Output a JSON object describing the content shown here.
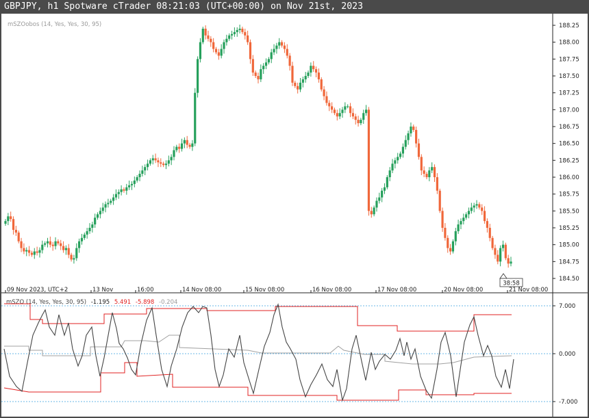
{
  "window": {
    "title": "GBPJPY, h1 Spotware cTrader 08:21:03 (UTC+00:00) on Nov 21st, 2023"
  },
  "main_chart": {
    "indicator_label": "mSZOobos (14, Yes, Yes, 30, 95)",
    "price_ticks": [
      "188.25",
      "188.00",
      "187.75",
      "187.50",
      "187.25",
      "187.00",
      "186.75",
      "186.50",
      "186.25",
      "186.00",
      "185.75",
      "185.50",
      "185.25",
      "185.00",
      "184.75",
      "184.50"
    ],
    "price_tick_values": [
      188.25,
      188.0,
      187.75,
      187.5,
      187.25,
      187.0,
      186.75,
      186.5,
      186.25,
      186.0,
      185.75,
      185.5,
      185.25,
      185.0,
      184.75,
      184.5
    ],
    "countdown": "38:58",
    "time_labels": [
      "09 Nov 2023, UTC+2",
      "13 Nov",
      "16:00",
      "14 Nov 08:00",
      "15 Nov 08:00",
      "16 Nov 08:00",
      "17 Nov 08:00",
      "20 Nov 08:00",
      "21 Nov 08:00"
    ]
  },
  "oscillator": {
    "name": "mSZO (14, Yes, Yes, 30, 95)",
    "value_main": "-1.195",
    "value_upper": "5.491",
    "value_lower": "-5.898",
    "value_mid": "-0.204",
    "ticks": [
      "7.000",
      "0.000",
      "-7.000"
    ],
    "tick_values": [
      7,
      0,
      -7
    ]
  },
  "colors": {
    "bull": "#26a05c",
    "bear": "#f0673a",
    "szo_line": "#444444",
    "band_line": "#e02020",
    "mid_line": "#a0a0a0",
    "level_line": "#3aa0e0"
  },
  "chart_data": {
    "type": "candlestick",
    "instrument": "GBPJPY",
    "timeframe": "h1",
    "ylim": [
      184.45,
      188.35
    ],
    "closes": [
      185.35,
      185.42,
      185.38,
      185.22,
      185.18,
      185.05,
      184.95,
      184.9,
      184.92,
      184.88,
      184.85,
      184.9,
      184.88,
      184.92,
      185.0,
      185.02,
      185.05,
      185.0,
      184.98,
      185.05,
      185.02,
      184.98,
      184.92,
      184.95,
      184.85,
      184.78,
      184.8,
      184.95,
      185.05,
      185.1,
      185.15,
      185.2,
      185.25,
      185.3,
      185.4,
      185.45,
      185.5,
      185.55,
      185.6,
      185.62,
      185.65,
      185.7,
      185.75,
      185.78,
      185.82,
      185.8,
      185.85,
      185.88,
      185.9,
      185.95,
      186.0,
      186.05,
      186.1,
      186.15,
      186.2,
      186.25,
      186.28,
      186.25,
      186.22,
      186.2,
      186.18,
      186.2,
      186.25,
      186.3,
      186.4,
      186.45,
      186.42,
      186.5,
      186.55,
      186.48,
      186.45,
      186.5,
      187.25,
      187.75,
      188.0,
      188.2,
      188.1,
      188.05,
      188.0,
      187.9,
      187.85,
      187.8,
      187.9,
      188.0,
      188.05,
      188.1,
      188.12,
      188.15,
      188.18,
      188.2,
      188.15,
      188.1,
      188.0,
      187.75,
      187.55,
      187.5,
      187.45,
      187.6,
      187.65,
      187.7,
      187.75,
      187.85,
      187.9,
      187.95,
      188.0,
      187.95,
      187.9,
      187.8,
      187.65,
      187.4,
      187.35,
      187.3,
      187.4,
      187.45,
      187.5,
      187.55,
      187.65,
      187.6,
      187.55,
      187.45,
      187.3,
      187.2,
      187.1,
      187.05,
      187.0,
      186.95,
      186.9,
      186.95,
      187.0,
      187.05,
      187.05,
      186.95,
      186.9,
      186.85,
      186.8,
      186.85,
      186.95,
      187.0,
      185.5,
      185.45,
      185.55,
      185.65,
      185.7,
      185.8,
      185.85,
      186.0,
      186.1,
      186.2,
      186.25,
      186.3,
      186.35,
      186.45,
      186.55,
      186.65,
      186.75,
      186.7,
      186.5,
      186.3,
      186.1,
      186.05,
      186.0,
      186.1,
      186.15,
      186.0,
      185.8,
      185.5,
      185.25,
      185.1,
      184.95,
      184.9,
      185.05,
      185.2,
      185.3,
      185.35,
      185.4,
      185.45,
      185.5,
      185.55,
      185.58,
      185.6,
      185.55,
      185.5,
      185.35,
      185.25,
      185.1,
      184.95,
      184.85,
      184.75,
      184.95,
      185.0,
      184.8,
      184.72,
      184.75
    ]
  }
}
